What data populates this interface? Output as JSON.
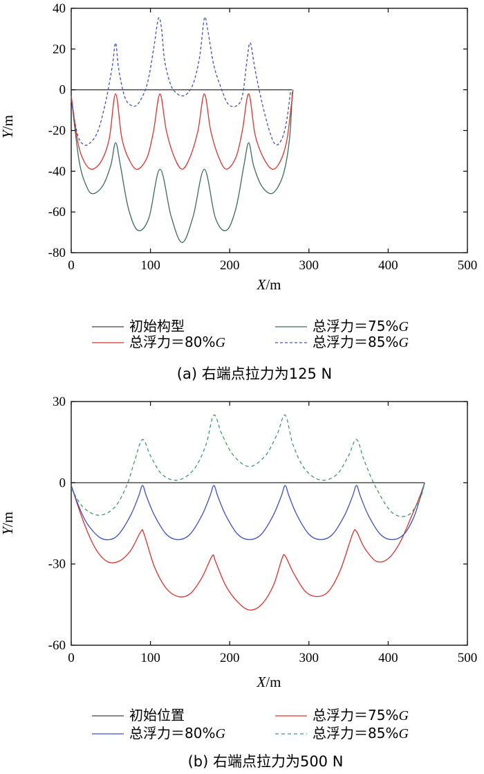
{
  "chart_data": [
    {
      "type": "line",
      "caption": "(a) 右端点拉力为125 N",
      "xlabel": {
        "italic": "X",
        "rest": "/m"
      },
      "ylabel": {
        "italic": "Y",
        "rest": "/m"
      },
      "xlim": [
        0,
        500
      ],
      "ylim": [
        -80,
        40
      ],
      "xticks": [
        0,
        100,
        200,
        300,
        400,
        500
      ],
      "yticks": [
        -80,
        -60,
        -40,
        -20,
        0,
        20,
        40
      ],
      "grid": false,
      "legend_position": "bottom",
      "series": [
        {
          "name": "初始构型",
          "color": "#404040",
          "dash": "none",
          "x": [
            0,
            279
          ],
          "y": [
            0,
            0
          ]
        },
        {
          "name": "总浮力＝75%G",
          "label_main": "总浮力＝75%",
          "label_italic": "G",
          "color": "#3a6b5a",
          "dash": "none",
          "x": [
            0,
            10,
            20,
            28,
            40,
            50,
            56,
            62,
            72,
            84,
            98,
            112,
            126,
            140,
            154,
            168,
            182,
            196,
            208,
            218,
            224,
            230,
            240,
            252,
            262,
            270,
            276,
            279
          ],
          "y": [
            -3,
            -35,
            -48,
            -51,
            -47,
            -37,
            -26,
            -37,
            -58,
            -69,
            -63,
            -39,
            -62,
            -75,
            -62,
            -39,
            -63,
            -69,
            -58,
            -37,
            -26,
            -37,
            -47,
            -51,
            -47,
            -38,
            -22,
            -1
          ]
        },
        {
          "name": "总浮力＝80%G",
          "label_main": "总浮力＝80%",
          "label_italic": "G",
          "color": "#e0302a",
          "dash": "none",
          "x": [
            0,
            8,
            16,
            26,
            38,
            48,
            56,
            64,
            74,
            84,
            96,
            104,
            112,
            120,
            130,
            140,
            150,
            160,
            168,
            176,
            186,
            196,
            208,
            216,
            224,
            232,
            242,
            254,
            264,
            272,
            277,
            280
          ],
          "y": [
            -3,
            -25,
            -35,
            -39,
            -35,
            -24,
            -2,
            -24,
            -35,
            -39,
            -33,
            -20,
            -2,
            -20,
            -33,
            -39,
            -33,
            -20,
            -2,
            -20,
            -33,
            -39,
            -33,
            -20,
            -2,
            -22,
            -33,
            -39,
            -35,
            -25,
            -10,
            0
          ]
        },
        {
          "name": "总浮力＝85%G",
          "label_main": "总浮力＝85%",
          "label_italic": "G",
          "color": "#3b4fc8",
          "dash": "4,3",
          "x": [
            0,
            8,
            16,
            24,
            34,
            44,
            52,
            56,
            60,
            68,
            78,
            86,
            96,
            104,
            110,
            114,
            118,
            126,
            134,
            140,
            146,
            154,
            162,
            168,
            172,
            180,
            190,
            198,
            208,
            216,
            222,
            226,
            232,
            240,
            250,
            258,
            266,
            272,
            277
          ],
          "y": [
            -5,
            -22,
            -27,
            -26,
            -20,
            -5,
            12,
            23,
            10,
            -4,
            -8,
            -6,
            3,
            20,
            35,
            30,
            14,
            2,
            -2,
            -3,
            -2,
            3,
            16,
            35,
            30,
            12,
            0,
            -7,
            -8,
            -3,
            15,
            23,
            10,
            -5,
            -20,
            -27,
            -24,
            -15,
            0
          ]
        }
      ]
    },
    {
      "type": "line",
      "caption": "(b) 右端点拉力为500 N",
      "xlabel": {
        "italic": "X",
        "rest": "/m"
      },
      "ylabel": {
        "italic": "Y",
        "rest": "/m"
      },
      "xlim": [
        0,
        500
      ],
      "ylim": [
        -60,
        30
      ],
      "xticks": [
        0,
        100,
        200,
        300,
        400,
        500
      ],
      "yticks": [
        -60,
        -30,
        0,
        30
      ],
      "grid": false,
      "legend_position": "bottom",
      "series": [
        {
          "name": "初始位置",
          "color": "#404040",
          "dash": "none",
          "x": [
            0,
            446
          ],
          "y": [
            0,
            0
          ]
        },
        {
          "name": "总浮力＝75%G",
          "label_main": "总浮力＝75%",
          "label_italic": "G",
          "color": "#e0302a",
          "dash": "none",
          "x": [
            0,
            15,
            30,
            45,
            60,
            75,
            88,
            92,
            105,
            120,
            135,
            150,
            165,
            178,
            182,
            195,
            210,
            225,
            240,
            255,
            266,
            270,
            280,
            295,
            310,
            325,
            340,
            355,
            360,
            370,
            385,
            400,
            415,
            430,
            440,
            446
          ],
          "y": [
            -1,
            -14,
            -24,
            -29,
            -29,
            -25,
            -18,
            -19,
            -31,
            -39,
            -42,
            -41,
            -35,
            -27,
            -29,
            -38,
            -44,
            -47,
            -45,
            -38,
            -28,
            -27,
            -33,
            -40,
            -42,
            -40,
            -32,
            -19,
            -18,
            -24,
            -29,
            -28,
            -22,
            -12,
            -5,
            0
          ]
        },
        {
          "name": "总浮力＝80%G",
          "label_main": "总浮力＝80%",
          "label_italic": "G",
          "color": "#3b4fc8",
          "dash": "none",
          "x": [
            0,
            10,
            20,
            35,
            48,
            60,
            75,
            85,
            90,
            95,
            105,
            120,
            135,
            150,
            165,
            175,
            180,
            185,
            195,
            210,
            225,
            240,
            255,
            265,
            270,
            275,
            285,
            300,
            315,
            330,
            345,
            355,
            360,
            365,
            375,
            390,
            405,
            420,
            432,
            440,
            446
          ],
          "y": [
            -1,
            -9,
            -15,
            -20,
            -21,
            -19,
            -12,
            -5,
            -1,
            -5,
            -12,
            -19,
            -21,
            -19,
            -12,
            -5,
            -1,
            -5,
            -12,
            -19,
            -21,
            -19,
            -12,
            -5,
            -1,
            -5,
            -12,
            -19,
            -21,
            -19,
            -12,
            -5,
            -1,
            -5,
            -12,
            -19,
            -21,
            -19,
            -13,
            -6,
            0
          ]
        },
        {
          "name": "总浮力＝85%G",
          "label_main": "总浮力＝85%",
          "label_italic": "G",
          "color": "#3a9a6a",
          "dash": "5,4",
          "x": [
            0,
            15,
            35,
            55,
            70,
            80,
            90,
            100,
            115,
            135,
            155,
            170,
            180,
            190,
            205,
            225,
            245,
            260,
            270,
            280,
            295,
            315,
            335,
            350,
            360,
            370,
            385,
            405,
            425,
            440,
            446
          ],
          "y": [
            -2,
            -9,
            -12,
            -9,
            -1,
            8,
            16,
            10,
            3,
            1,
            5,
            14,
            25,
            18,
            10,
            6,
            10,
            18,
            25,
            14,
            5,
            1,
            3,
            10,
            16,
            8,
            -2,
            -11,
            -12,
            -6,
            0
          ]
        }
      ]
    }
  ]
}
